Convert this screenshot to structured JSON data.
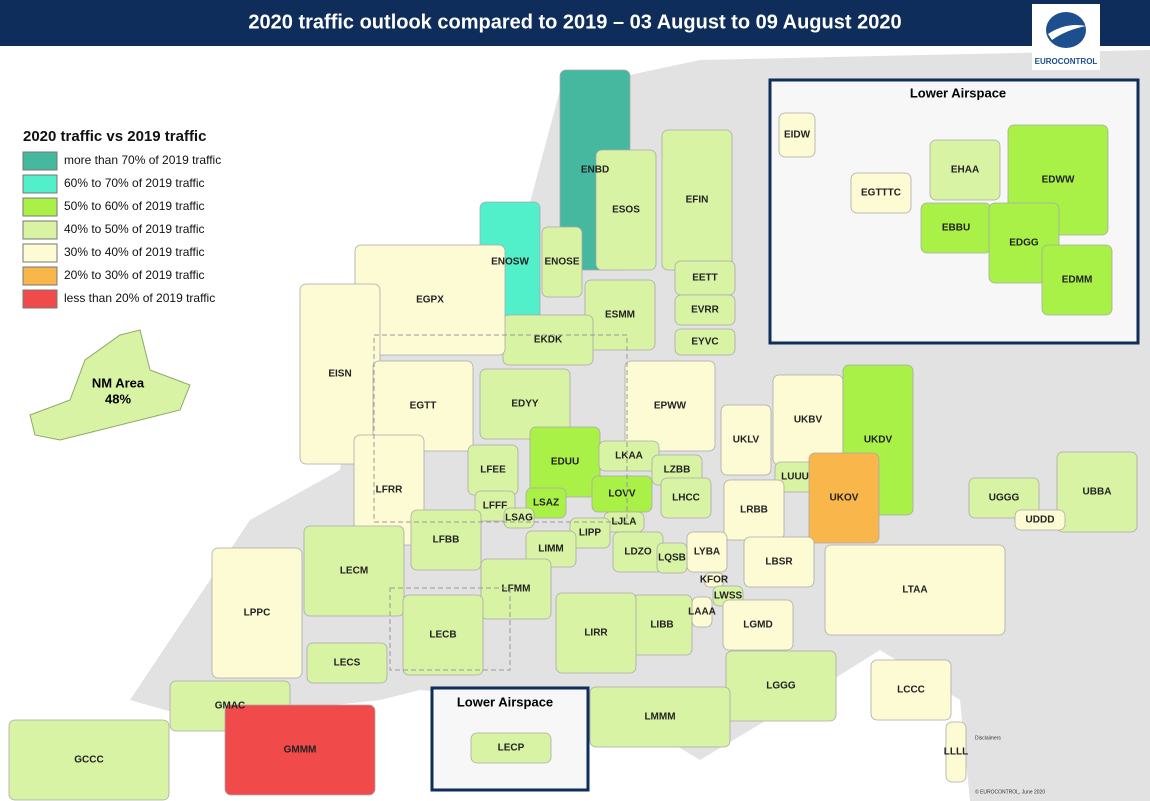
{
  "header": {
    "title": "2020 traffic outlook compared to 2019 – 03 August to 09 August 2020",
    "logo": "EUROCONTROL"
  },
  "legend": {
    "title": "2020 traffic vs 2019 traffic",
    "items": [
      {
        "label": "more than 70% of 2019 traffic",
        "color": "#45b89f"
      },
      {
        "label": "60% to 70% of 2019 traffic",
        "color": "#52efcb"
      },
      {
        "label": "50% to 60% of 2019 traffic",
        "color": "#a9f047"
      },
      {
        "label": "40% to 50% of 2019 traffic",
        "color": "#d9f3a4"
      },
      {
        "label": "30% to 40% of 2019 traffic",
        "color": "#fdfbd4"
      },
      {
        "label": "20% to 30% of 2019 traffic",
        "color": "#f8b64b"
      },
      {
        "label": "less than 20% of 2019 traffic",
        "color": "#f04a4a"
      }
    ]
  },
  "nm_area": {
    "name": "NM Area",
    "share": "48%",
    "color": "#d9f3a4"
  },
  "regions": [
    {
      "label": "ENBD",
      "color": "#45b89f"
    },
    {
      "label": "ENOSW",
      "color": "#52efcb"
    },
    {
      "label": "ENOSE",
      "color": "#d9f3a4"
    },
    {
      "label": "ESOS",
      "color": "#d9f3a4"
    },
    {
      "label": "EFIN",
      "color": "#d9f3a4"
    },
    {
      "label": "EETT",
      "color": "#d9f3a4"
    },
    {
      "label": "EVRR",
      "color": "#d9f3a4"
    },
    {
      "label": "EYVC",
      "color": "#d9f3a4"
    },
    {
      "label": "ESMM",
      "color": "#d9f3a4"
    },
    {
      "label": "EKDK",
      "color": "#d9f3a4"
    },
    {
      "label": "EGPX",
      "color": "#fdfbd4"
    },
    {
      "label": "EISN",
      "color": "#fdfbd4"
    },
    {
      "label": "EGTT",
      "color": "#fdfbd4"
    },
    {
      "label": "EDYY",
      "color": "#d9f3a4"
    },
    {
      "label": "EPWW",
      "color": "#fdfbd4"
    },
    {
      "label": "UKLV",
      "color": "#fdfbd4"
    },
    {
      "label": "UKBV",
      "color": "#fdfbd4"
    },
    {
      "label": "UKDV",
      "color": "#a9f047"
    },
    {
      "label": "EDUU",
      "color": "#a9f047"
    },
    {
      "label": "LKAA",
      "color": "#d9f3a4"
    },
    {
      "label": "LZBB",
      "color": "#d9f3a4"
    },
    {
      "label": "LFEE",
      "color": "#d9f3a4"
    },
    {
      "label": "LFRR",
      "color": "#fdfbd4"
    },
    {
      "label": "LUUU",
      "color": "#d9f3a4"
    },
    {
      "label": "UKOV",
      "color": "#f8b64b"
    },
    {
      "label": "LOVV",
      "color": "#a9f047"
    },
    {
      "label": "LHCC",
      "color": "#d9f3a4"
    },
    {
      "label": "LSAZ",
      "color": "#a9f047"
    },
    {
      "label": "LFFF",
      "color": "#d9f3a4"
    },
    {
      "label": "LSAG",
      "color": "#d9f3a4"
    },
    {
      "label": "LJLA",
      "color": "#d9f3a4"
    },
    {
      "label": "LRBB",
      "color": "#fdfbd4"
    },
    {
      "label": "LFBB",
      "color": "#d9f3a4"
    },
    {
      "label": "LIPP",
      "color": "#d9f3a4"
    },
    {
      "label": "LIMM",
      "color": "#d9f3a4"
    },
    {
      "label": "LDZO",
      "color": "#d9f3a4"
    },
    {
      "label": "LYBA",
      "color": "#fdfbd4"
    },
    {
      "label": "LQSB",
      "color": "#d9f3a4"
    },
    {
      "label": "LBSR",
      "color": "#fdfbd4"
    },
    {
      "label": "LECM",
      "color": "#d9f3a4"
    },
    {
      "label": "LFMM",
      "color": "#d9f3a4"
    },
    {
      "label": "KFOR",
      "color": "#fdfbd4"
    },
    {
      "label": "LWSS",
      "color": "#d9f3a4"
    },
    {
      "label": "LAAA",
      "color": "#fdfbd4"
    },
    {
      "label": "LTAA",
      "color": "#fdfbd4"
    },
    {
      "label": "LPPC",
      "color": "#fdfbd4"
    },
    {
      "label": "LIBB",
      "color": "#d9f3a4"
    },
    {
      "label": "LIRR",
      "color": "#d9f3a4"
    },
    {
      "label": "LGMD",
      "color": "#fdfbd4"
    },
    {
      "label": "LECB",
      "color": "#d9f3a4"
    },
    {
      "label": "LECS",
      "color": "#d9f3a4"
    },
    {
      "label": "LGGG",
      "color": "#d9f3a4"
    },
    {
      "label": "LCCC",
      "color": "#fdfbd4"
    },
    {
      "label": "GMAC",
      "color": "#d9f3a4"
    },
    {
      "label": "LMMM",
      "color": "#d9f3a4"
    },
    {
      "label": "GMMM",
      "color": "#f04a4a"
    },
    {
      "label": "LLLL",
      "color": "#fdfbd4"
    },
    {
      "label": "GCCC",
      "color": "#d9f3a4"
    },
    {
      "label": "UGGG",
      "color": "#d9f3a4"
    },
    {
      "label": "UBBA",
      "color": "#d9f3a4"
    },
    {
      "label": "UDDD",
      "color": "#fdfbd4"
    }
  ],
  "insets": [
    {
      "title": "Lower Airspace",
      "regions": [
        {
          "label": "EIDW",
          "color": "#fdfbd4"
        },
        {
          "label": "EHAA",
          "color": "#d9f3a4"
        },
        {
          "label": "EDWW",
          "color": "#a9f047"
        },
        {
          "label": "EGTTTC",
          "color": "#fdfbd4"
        },
        {
          "label": "EBBU",
          "color": "#a9f047"
        },
        {
          "label": "EDGG",
          "color": "#a9f047"
        },
        {
          "label": "EDMM",
          "color": "#a9f047"
        }
      ]
    },
    {
      "title": "Lower Airspace",
      "regions": [
        {
          "label": "LECP",
          "color": "#d9f3a4"
        }
      ]
    }
  ],
  "footer": {
    "disclaimer_title": "Disclaimers",
    "copyright": "© EUROCONTROL, June 2020"
  }
}
